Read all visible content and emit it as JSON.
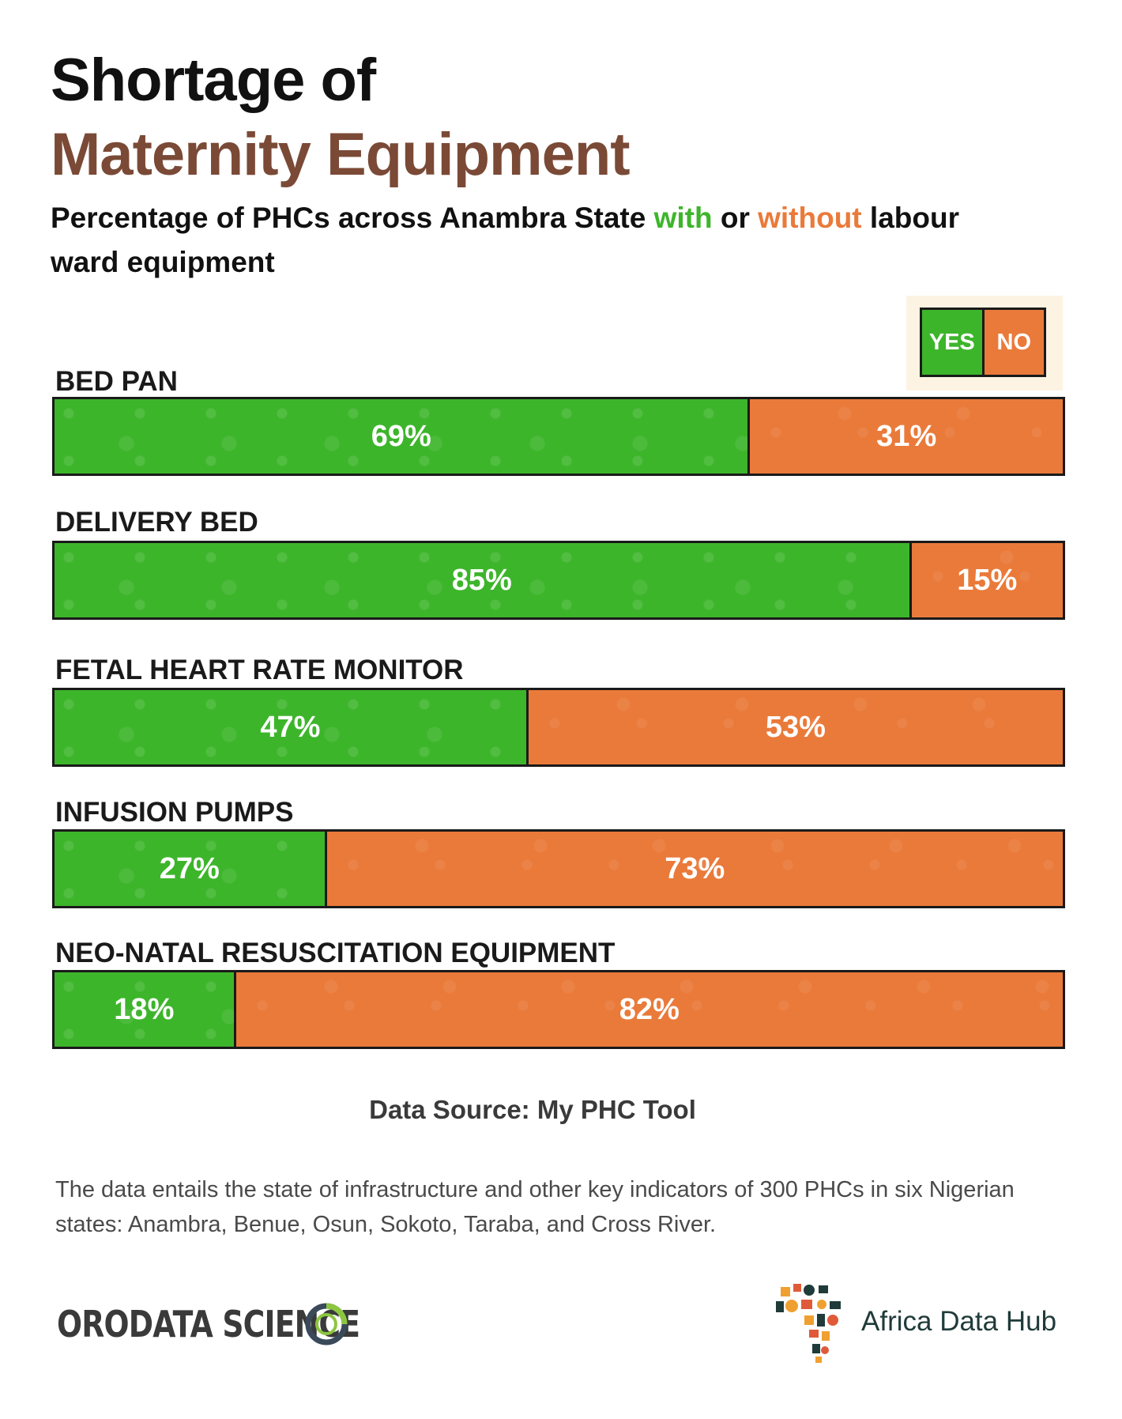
{
  "title": {
    "line1": "Shortage of",
    "line2": "Maternity Equipment"
  },
  "subtitle": {
    "part1": "Percentage of  PHCs across Anambra State ",
    "with": "with",
    "part2": " or ",
    "without": "without",
    "part3": " labour ward equipment"
  },
  "legend": {
    "yes": "YES",
    "no": "NO"
  },
  "colors": {
    "yes": "#3db52b",
    "no": "#ea7a3a",
    "title_accent": "#7a4a36"
  },
  "chart_data": {
    "type": "bar",
    "orientation": "horizontal-stacked-100",
    "categories": [
      "BED PAN",
      "DELIVERY BED",
      "FETAL HEART RATE MONITOR",
      "INFUSION PUMPS",
      "NEO-NATAL RESUSCITATION EQUIPMENT"
    ],
    "series": [
      {
        "name": "YES",
        "values": [
          69,
          85,
          47,
          27,
          18
        ]
      },
      {
        "name": "NO",
        "values": [
          31,
          15,
          53,
          73,
          82
        ]
      }
    ],
    "value_labels": {
      "yes": [
        "69%",
        "85%",
        "47%",
        "27%",
        "18%"
      ],
      "no": [
        "31%",
        "15%",
        "53%",
        "73%",
        "82%"
      ]
    },
    "title": "Shortage of Maternity Equipment",
    "legend_position": "top-right",
    "xlim": [
      0,
      100
    ]
  },
  "source": "Data Source: My PHC Tool",
  "note": "The data entails the state of infrastructure and other key indicators of 300 PHCs in six Nigerian states: Anambra, Benue, Osun, Sokoto, Taraba, and Cross River.",
  "logos": {
    "orodata": "ORODATA SCIENCE",
    "africa_data_hub": "Africa Data Hub"
  }
}
